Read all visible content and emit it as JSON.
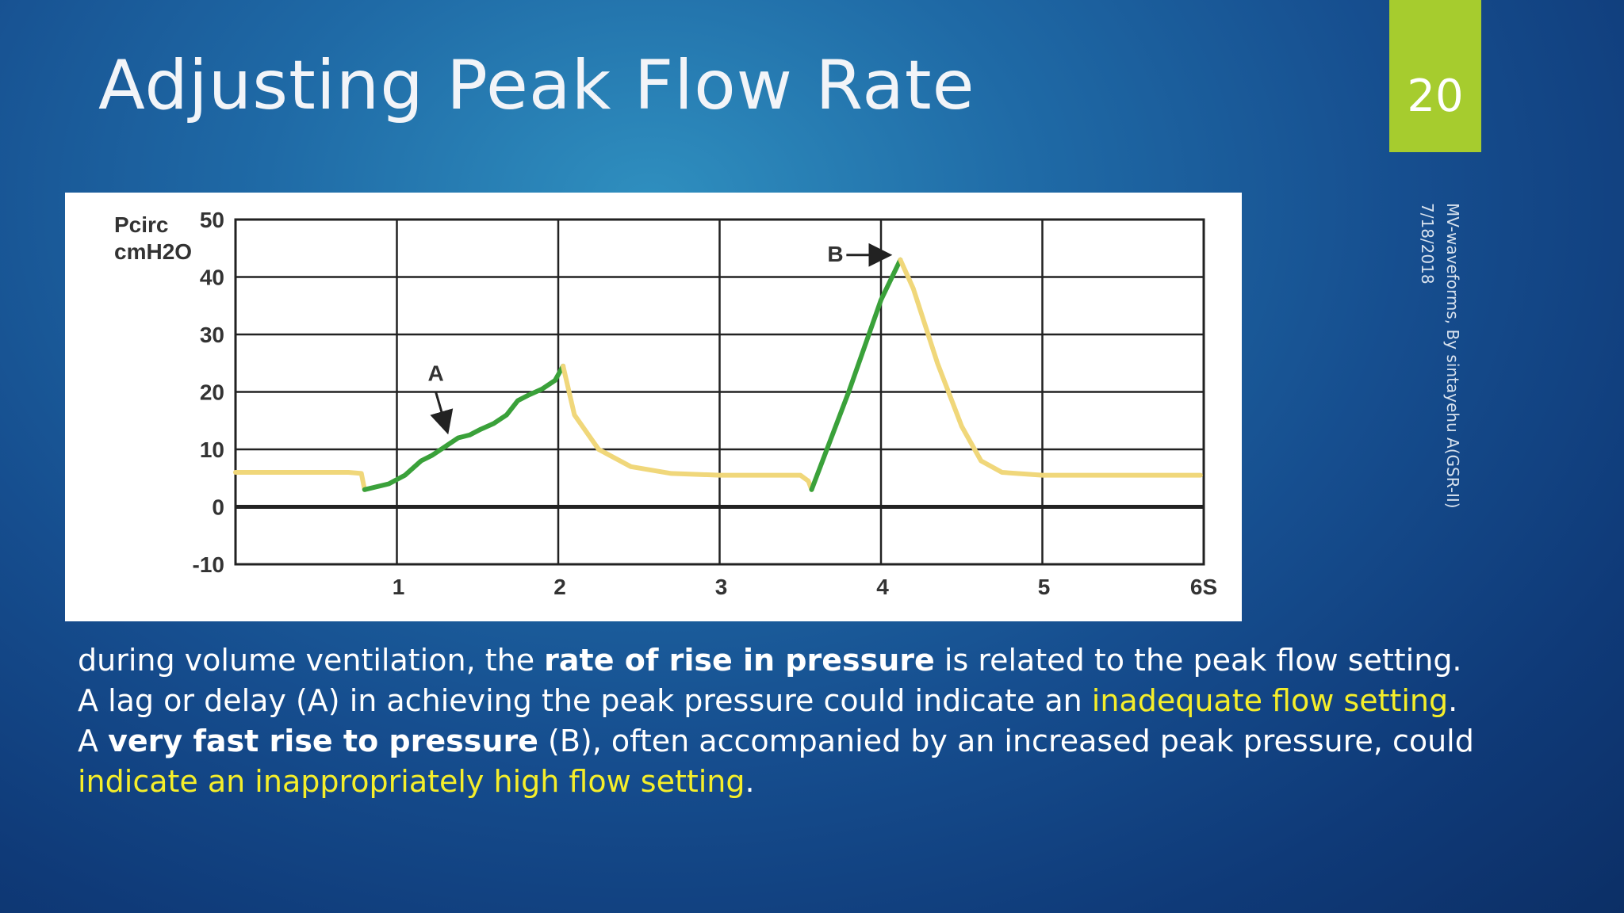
{
  "slide": {
    "title": "Adjusting Peak Flow Rate",
    "number": "20",
    "footer_line1": "MV-waveforms, By sintayehu A(GSR-II)",
    "footer_line2": "7/18/2018"
  },
  "colors": {
    "accent": "#a6cc2e",
    "highlight": "#f5ee2a",
    "curve_green": "#3aa13a",
    "curve_yellow": "#f0d77a"
  },
  "body": {
    "line1_pre": "during volume ventilation, the ",
    "line1_bold": "rate of rise in pressure",
    "line1_post": " is related to the peak flow setting.",
    "line2_pre": "A lag or delay (A) in achieving the peak pressure could indicate an ",
    "line2_yellow": "inadequate flow setting",
    "line2_post": ".",
    "line3_pre": "A ",
    "line3_bold": "very fast rise to pressure",
    "line3_mid": " (B), often accompanied by an increased peak pressure, could ",
    "line3_yellow": "indicate an inappropriately high flow setting",
    "line3_post": "."
  },
  "chart_data": {
    "type": "line",
    "ylabel_line1": "Pcirc",
    "ylabel_line2": "cmH2O",
    "xlim": [
      0,
      6
    ],
    "ylim": [
      -10,
      50
    ],
    "x_ticks": [
      "1",
      "2",
      "3",
      "4",
      "5",
      "6S"
    ],
    "y_ticks": [
      "50",
      "40",
      "30",
      "20",
      "10",
      "0",
      "-10"
    ],
    "grid": true,
    "annotations": [
      {
        "label": "A",
        "x": 1.3,
        "y": 12
      },
      {
        "label": "B",
        "x": 4.1,
        "y": 43
      }
    ],
    "series": [
      {
        "color": "yellow",
        "points": [
          [
            0,
            6
          ],
          [
            0.7,
            6
          ],
          [
            0.78,
            5.8
          ],
          [
            0.8,
            3
          ]
        ]
      },
      {
        "color": "green",
        "points": [
          [
            0.8,
            3
          ],
          [
            0.95,
            4
          ],
          [
            1.05,
            5.5
          ],
          [
            1.15,
            8
          ],
          [
            1.22,
            9
          ],
          [
            1.3,
            10.5
          ],
          [
            1.38,
            12
          ],
          [
            1.45,
            12.5
          ],
          [
            1.52,
            13.5
          ],
          [
            1.6,
            14.5
          ],
          [
            1.68,
            16
          ],
          [
            1.75,
            18.5
          ],
          [
            1.82,
            19.5
          ],
          [
            1.9,
            20.5
          ],
          [
            1.98,
            22
          ],
          [
            2.03,
            24.5
          ]
        ]
      },
      {
        "color": "yellow",
        "points": [
          [
            2.03,
            24.5
          ],
          [
            2.1,
            16
          ],
          [
            2.25,
            10
          ],
          [
            2.45,
            7
          ],
          [
            2.7,
            5.8
          ],
          [
            3.0,
            5.5
          ],
          [
            3.4,
            5.5
          ],
          [
            3.5,
            5.5
          ],
          [
            3.55,
            4.5
          ],
          [
            3.57,
            3
          ]
        ]
      },
      {
        "color": "green",
        "points": [
          [
            3.57,
            3
          ],
          [
            3.8,
            20
          ],
          [
            4.0,
            36
          ],
          [
            4.12,
            43
          ]
        ]
      },
      {
        "color": "yellow",
        "points": [
          [
            4.12,
            43
          ],
          [
            4.2,
            38
          ],
          [
            4.35,
            25
          ],
          [
            4.5,
            14
          ],
          [
            4.62,
            8
          ],
          [
            4.75,
            6
          ],
          [
            5.0,
            5.5
          ],
          [
            5.5,
            5.5
          ],
          [
            5.98,
            5.5
          ]
        ]
      }
    ]
  }
}
